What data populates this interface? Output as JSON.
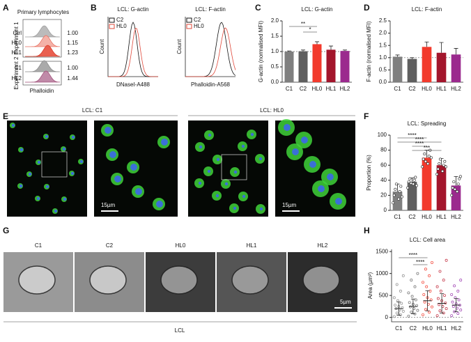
{
  "panel_labels": [
    "A",
    "B",
    "C",
    "D",
    "E",
    "F",
    "G",
    "H"
  ],
  "panel_a": {
    "title": "Primary lymphocytes",
    "xlabel": "Phalloidin",
    "experiments": [
      {
        "label": "Experiment 1",
        "rows": [
          {
            "name": "Ctrl",
            "value": "1.00"
          },
          {
            "name": "HL0",
            "value": "1.15"
          },
          {
            "name": "HL1",
            "value": "1.23"
          }
        ]
      },
      {
        "label": "Experiment 2",
        "rows": [
          {
            "name": "C1",
            "value": "1.00"
          },
          {
            "name": "HL2",
            "value": "1.44"
          }
        ]
      }
    ]
  },
  "panel_b": [
    {
      "title": "LCL: G-actin",
      "ylabel": "Count",
      "xlabel": "DNaseI-A488",
      "legend": [
        "C2",
        "HL0"
      ]
    },
    {
      "title": "LCL: F-actin",
      "ylabel": "Count",
      "xlabel": "Phalloidin-A568",
      "legend": [
        "C2",
        "HL0"
      ]
    }
  ],
  "panel_e": {
    "images": [
      "LCL: C1",
      "LCL: HL0"
    ],
    "scale": "15µm"
  },
  "panel_g": {
    "labels": [
      "C1",
      "C2",
      "HL0",
      "HL1",
      "HL2"
    ],
    "scale": "5µm",
    "group": "LCL"
  },
  "chart_data": [
    {
      "type": "bar",
      "title": "LCL: G-actin",
      "ylabel": "G-actin (normalised MFI)",
      "categories": [
        "C1",
        "C2",
        "HL0",
        "HL1",
        "HL2"
      ],
      "values": [
        1.0,
        1.01,
        1.24,
        1.06,
        1.02
      ],
      "errors": [
        0.02,
        0.04,
        0.08,
        0.12,
        0.03
      ],
      "colors": [
        "#7f7f7f",
        "#5f5f5f",
        "#f23a2c",
        "#a3162c",
        "#9b2a8e"
      ],
      "ylim": [
        0,
        2.0
      ],
      "yticks": [
        {
          "value": 0,
          "label": "0.0"
        },
        0.5,
        {
          "value": 1,
          "label": "1.0"
        },
        1.5,
        {
          "value": 2,
          "label": "2.0"
        }
      ],
      "reference": 1,
      "annotations": [
        "**",
        "*"
      ]
    },
    {
      "type": "bar",
      "title": "LCL: F-actin",
      "ylabel": "F-actin (normalised MFI)",
      "categories": [
        "C1",
        "C2",
        "HL0",
        "HL1",
        "HL2"
      ],
      "values": [
        1.04,
        0.95,
        1.44,
        1.2,
        1.13
      ],
      "errors": [
        0.07,
        0.05,
        0.2,
        0.42,
        0.25
      ],
      "colors": [
        "#7f7f7f",
        "#5f5f5f",
        "#f23a2c",
        "#a3162c",
        "#9b2a8e"
      ],
      "ylim": [
        0,
        2.5
      ],
      "yticks": [
        {
          "value": 0,
          "label": "0.0"
        },
        0.5,
        {
          "value": 1,
          "label": "1.0"
        },
        1.5,
        {
          "value": 2,
          "label": "2.0"
        },
        2.5
      ],
      "reference": 1,
      "annotations": []
    },
    {
      "type": "bar",
      "title": "LCL: Spreading",
      "ylabel": "Proportion (%)",
      "categories": [
        "C1",
        "C2",
        "HL0",
        "HL1",
        "HL2"
      ],
      "values": [
        25,
        38,
        70,
        60,
        33
      ],
      "errors": [
        10,
        5,
        10,
        9,
        12
      ],
      "colors": [
        "#7f7f7f",
        "#5f5f5f",
        "#f23a2c",
        "#a3162c",
        "#9b2a8e"
      ],
      "ylim": [
        0,
        100
      ],
      "yticks": [
        0,
        20,
        40,
        60,
        80,
        100
      ],
      "points": [
        [
          10,
          15,
          20,
          25,
          28,
          32,
          35,
          18
        ],
        [
          30,
          35,
          38,
          40,
          42,
          44,
          36,
          33
        ],
        [
          58,
          62,
          68,
          72,
          75,
          80,
          65,
          70
        ],
        [
          48,
          52,
          55,
          60,
          62,
          65,
          68,
          58
        ],
        [
          20,
          25,
          30,
          35,
          38,
          42,
          28,
          45
        ]
      ],
      "annotations": [
        "****",
        "****",
        "****",
        "***"
      ]
    },
    {
      "type": "dot",
      "title": "LCL: Cell area",
      "ylabel": "Area (µm²)",
      "categories": [
        "C1",
        "C2",
        "HL0",
        "HL1",
        "HL2"
      ],
      "values": [
        200,
        250,
        380,
        320,
        280
      ],
      "errors": [
        150,
        170,
        230,
        220,
        150
      ],
      "colors": [
        "#8a8a8a",
        "#6a6a6a",
        "#f23a2c",
        "#c0283a",
        "#9b3ab0"
      ],
      "ylim": [
        -100,
        1550
      ],
      "yticks": [
        0,
        500,
        1000,
        1500
      ],
      "reference": 0,
      "points": [
        [
          20,
          60,
          100,
          140,
          170,
          200,
          220,
          250,
          280,
          320,
          380,
          450,
          600,
          750,
          950
        ],
        [
          30,
          80,
          120,
          160,
          200,
          240,
          270,
          300,
          340,
          400,
          480,
          560,
          700,
          850,
          1000
        ],
        [
          60,
          120,
          180,
          240,
          300,
          350,
          400,
          450,
          520,
          600,
          700,
          800,
          950,
          1100,
          1250
        ],
        [
          40,
          100,
          150,
          200,
          250,
          290,
          330,
          380,
          430,
          500,
          600,
          700,
          850,
          1050,
          1300
        ],
        [
          40,
          90,
          130,
          170,
          210,
          250,
          280,
          310,
          350,
          400,
          450,
          520,
          600,
          720,
          850
        ]
      ],
      "annotations": [
        "****",
        "****"
      ]
    }
  ]
}
